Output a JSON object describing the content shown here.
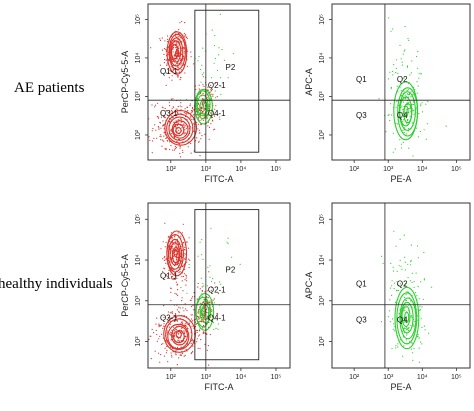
{
  "rows": [
    {
      "label": "AE patients"
    },
    {
      "label": "healthy individuals"
    }
  ],
  "colors": {
    "cd4": "#d9342b",
    "cd8": "#2fcf2f",
    "frame": "#333333",
    "gate": "#222222"
  },
  "chart_data": [
    {
      "type": "scatter",
      "panel": "AE patients, FITC vs PerCP",
      "xlabel": "FITC-A",
      "ylabel": "PerCP-Cy5-5-A",
      "scale": "log",
      "x_ticks": [
        "10²",
        "10³",
        "10⁴",
        "10⁵"
      ],
      "y_ticks": [
        "10²",
        "10³",
        "10⁴",
        "10⁵"
      ],
      "quadrants": [
        "Q1-1",
        "Q2-1",
        "Q3-1",
        "Q4-1"
      ],
      "gate": "P2",
      "quadrant_cross": {
        "x": 1000,
        "y": 800
      },
      "color": "red"
    },
    {
      "type": "scatter",
      "panel": "AE patients, PE vs APC",
      "xlabel": "PE-A",
      "ylabel": "APC-A",
      "scale": "log",
      "x_ticks": [
        "10²",
        "10³",
        "10⁴",
        "10⁵"
      ],
      "y_ticks": [
        "10²",
        "10³",
        "10⁴",
        "10⁵"
      ],
      "quadrants": [
        "Q1",
        "Q2",
        "Q3",
        "Q4"
      ],
      "quadrant_cross": {
        "x": 800,
        "y": 800
      },
      "color": "green"
    },
    {
      "type": "scatter",
      "panel": "healthy individuals, FITC vs PerCP",
      "xlabel": "FITC-A",
      "ylabel": "PerCP-Cy5-5-A",
      "scale": "log",
      "x_ticks": [
        "10²",
        "10³",
        "10⁴",
        "10⁵"
      ],
      "y_ticks": [
        "10²",
        "10³",
        "10⁴",
        "10⁵"
      ],
      "quadrants": [
        "Q1-1",
        "Q2-1",
        "Q3-1",
        "Q4-1"
      ],
      "gate": "P2",
      "quadrant_cross": {
        "x": 1000,
        "y": 800
      },
      "color": "red"
    },
    {
      "type": "scatter",
      "panel": "healthy individuals, PE vs APC",
      "xlabel": "PE-A",
      "ylabel": "APC-A",
      "scale": "log",
      "x_ticks": [
        "10²",
        "10³",
        "10⁴",
        "10⁵"
      ],
      "y_ticks": [
        "10²",
        "10³",
        "10⁴",
        "10⁵"
      ],
      "quadrants": [
        "Q1",
        "Q2",
        "Q3",
        "Q4"
      ],
      "quadrant_cross": {
        "x": 800,
        "y": 800
      },
      "color": "green"
    }
  ]
}
